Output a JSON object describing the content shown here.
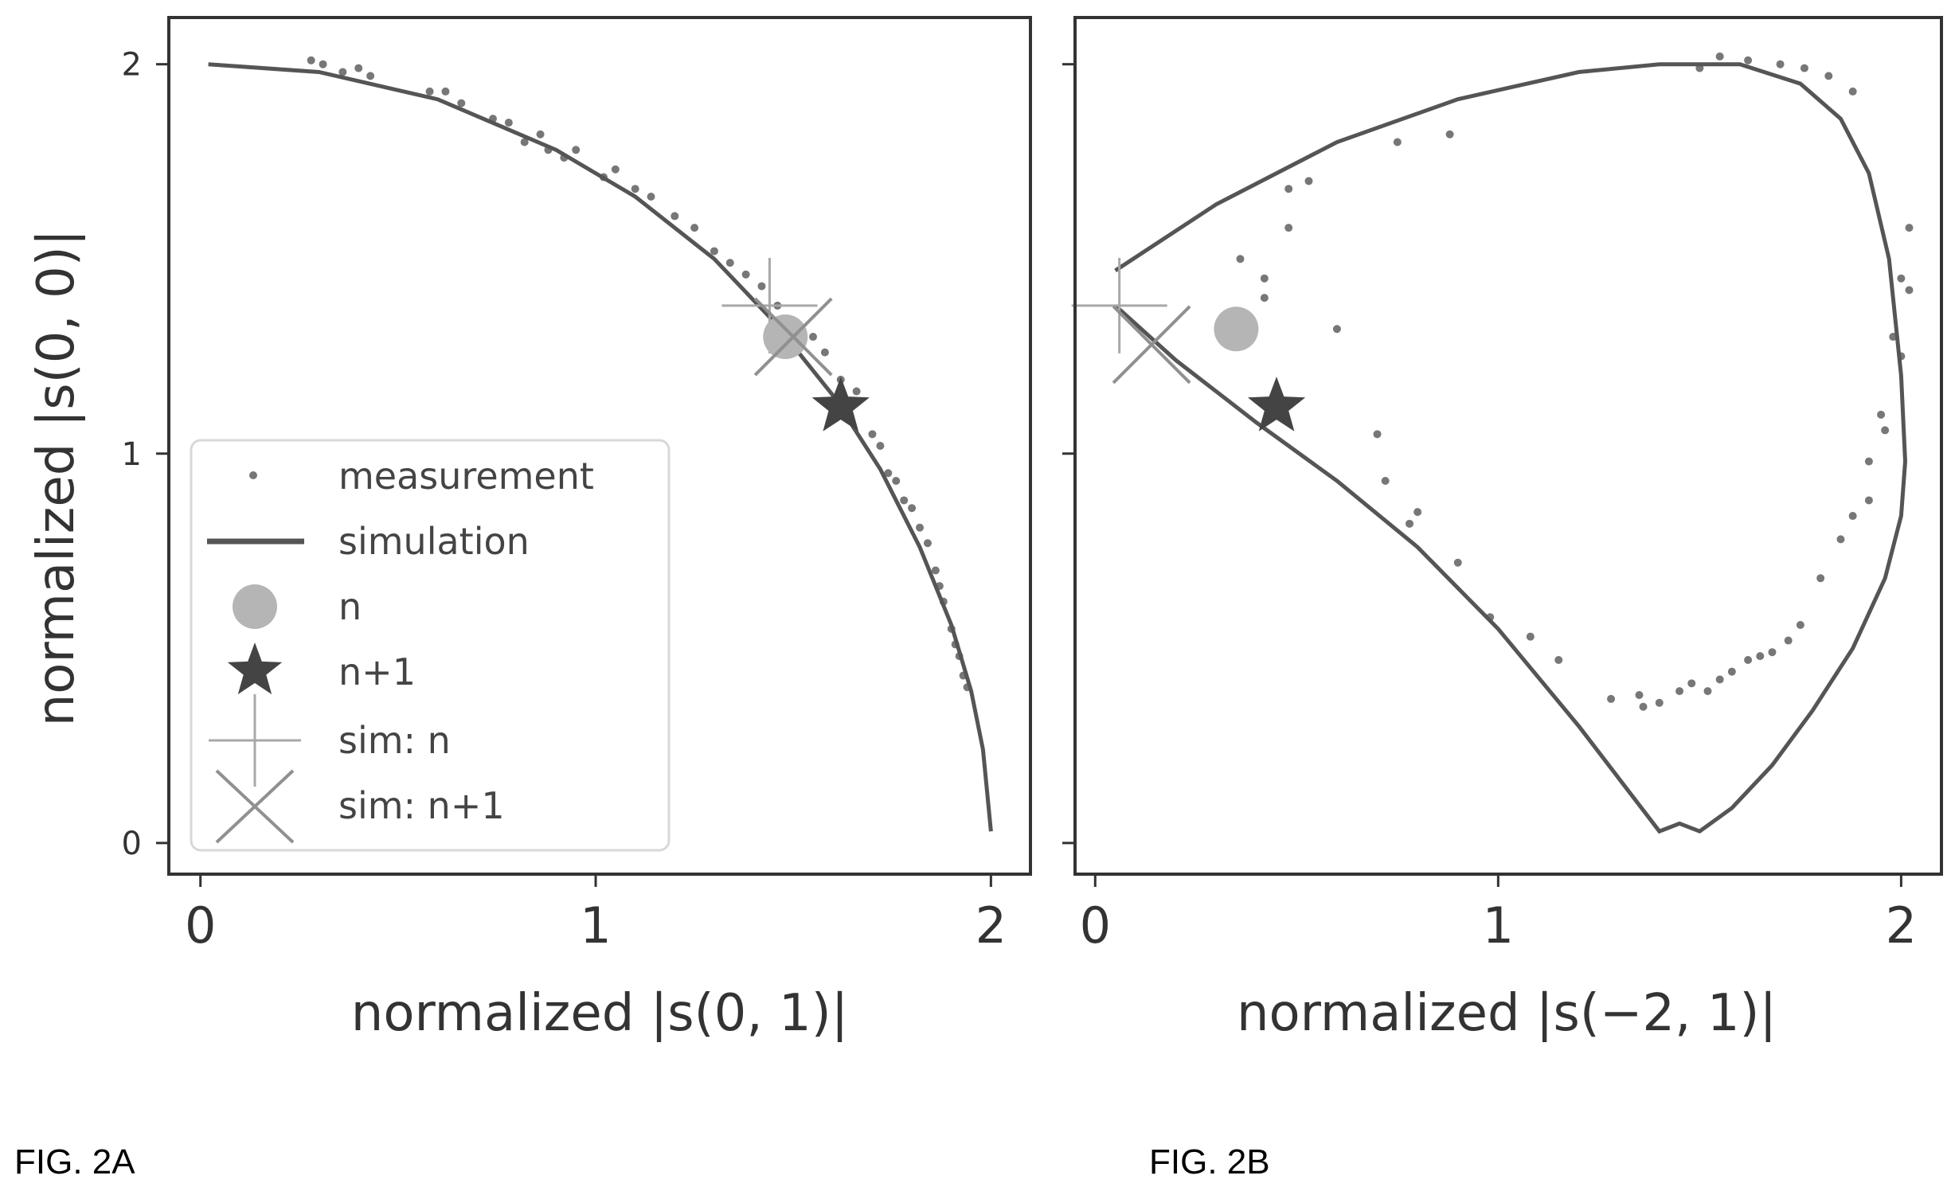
{
  "figure_labels": {
    "left": "FIG. 2A",
    "right": "FIG. 2B"
  },
  "legend": {
    "measurement": "measurement",
    "simulation": "simulation",
    "n": "n",
    "n1": "n+1",
    "sim_n": "sim: n",
    "sim_n1": "sim: n+1"
  },
  "colors": {
    "measurement": "#777777",
    "simulation": "#555555",
    "n_marker": "#b5b5b5",
    "n1_marker": "#444444",
    "sim_n_marker": "#a8a8a8",
    "sim_n1_marker": "#909090",
    "axes": "#333333"
  },
  "chart_data": [
    {
      "type": "scatter",
      "panel": "FIG. 2A",
      "xlabel": "normalized |s(0, 1)|",
      "ylabel": "normalized |s(0, 0)|",
      "xlim": [
        -0.08,
        2.1
      ],
      "ylim": [
        -0.08,
        2.12
      ],
      "xticks": [
        0,
        1,
        2
      ],
      "yticks": [
        0,
        1,
        2
      ],
      "legend_position": "lower-left",
      "grid": false,
      "simulation": {
        "x": [
          0.02,
          0.3,
          0.6,
          0.9,
          1.1,
          1.3,
          1.45,
          1.6,
          1.72,
          1.82,
          1.9,
          1.95,
          1.98,
          2.0
        ],
        "y": [
          2.0,
          1.98,
          1.91,
          1.78,
          1.66,
          1.5,
          1.34,
          1.15,
          0.96,
          0.76,
          0.56,
          0.39,
          0.24,
          0.03
        ]
      },
      "measurement": {
        "x": [
          0.28,
          0.31,
          0.36,
          0.4,
          0.43,
          0.58,
          0.62,
          0.66,
          0.74,
          0.78,
          0.82,
          0.86,
          0.88,
          0.92,
          0.95,
          1.02,
          1.05,
          1.1,
          1.14,
          1.2,
          1.25,
          1.3,
          1.34,
          1.38,
          1.42,
          1.46,
          1.5,
          1.55,
          1.58,
          1.62,
          1.66,
          1.7,
          1.72,
          1.74,
          1.76,
          1.78,
          1.8,
          1.82,
          1.84,
          1.86,
          1.87,
          1.88,
          1.9,
          1.91,
          1.92,
          1.93,
          1.94
        ],
        "y": [
          2.01,
          2.0,
          1.98,
          1.99,
          1.97,
          1.93,
          1.93,
          1.9,
          1.86,
          1.85,
          1.8,
          1.82,
          1.78,
          1.76,
          1.78,
          1.71,
          1.73,
          1.68,
          1.66,
          1.61,
          1.58,
          1.52,
          1.49,
          1.46,
          1.43,
          1.38,
          1.34,
          1.3,
          1.26,
          1.19,
          1.16,
          1.05,
          1.02,
          0.95,
          0.93,
          0.88,
          0.86,
          0.81,
          0.77,
          0.7,
          0.66,
          0.62,
          0.55,
          0.51,
          0.48,
          0.43,
          0.4
        ]
      },
      "n": {
        "x": 1.48,
        "y": 1.3
      },
      "n1": {
        "x": 1.62,
        "y": 1.12
      },
      "sim_n": {
        "x": 1.44,
        "y": 1.38
      },
      "sim_n1": {
        "x": 1.5,
        "y": 1.3
      }
    },
    {
      "type": "scatter",
      "panel": "FIG. 2B",
      "xlabel": "normalized |s(−2, 1)|",
      "ylabel": "",
      "xlim": [
        -0.05,
        2.1
      ],
      "ylim": [
        -0.08,
        2.12
      ],
      "xticks": [
        0,
        1,
        2
      ],
      "yticks": [
        0,
        1,
        2
      ],
      "legend_position": "none",
      "grid": false,
      "simulation": {
        "x": [
          0.05,
          0.3,
          0.6,
          0.9,
          1.2,
          1.4,
          1.6,
          1.75,
          1.85,
          1.92,
          1.97,
          2.0,
          2.01,
          2.0,
          1.96,
          1.88,
          1.78,
          1.68,
          1.58,
          1.5,
          1.45,
          1.4,
          1.2,
          1.0,
          0.8,
          0.6,
          0.4,
          0.2,
          0.05
        ],
        "y": [
          1.47,
          1.64,
          1.8,
          1.91,
          1.98,
          2.0,
          2.0,
          1.95,
          1.86,
          1.72,
          1.5,
          1.2,
          0.98,
          0.84,
          0.68,
          0.5,
          0.34,
          0.2,
          0.09,
          0.03,
          0.05,
          0.03,
          0.3,
          0.55,
          0.76,
          0.93,
          1.08,
          1.24,
          1.38
        ]
      },
      "measurement": {
        "x": [
          0.38,
          0.42,
          0.48,
          0.53,
          0.6,
          0.7,
          0.72,
          0.78,
          0.8,
          0.9,
          0.98,
          1.08,
          1.15,
          1.28,
          1.35,
          1.36,
          1.4,
          1.45,
          1.48,
          1.52,
          1.55,
          1.58,
          1.62,
          1.65,
          1.68,
          1.72,
          1.75,
          1.8,
          1.85,
          1.88,
          1.92,
          1.95,
          1.98,
          2.0,
          2.02,
          2.02,
          2.0,
          1.96,
          1.92,
          1.88,
          1.82,
          1.76,
          1.7,
          1.62,
          1.55,
          1.5,
          0.75,
          0.88,
          0.48,
          0.36,
          0.42
        ],
        "y": [
          1.33,
          1.45,
          1.68,
          1.7,
          1.32,
          1.05,
          0.93,
          0.82,
          0.85,
          0.72,
          0.58,
          0.53,
          0.47,
          0.37,
          0.38,
          0.35,
          0.36,
          0.39,
          0.41,
          0.39,
          0.42,
          0.44,
          0.47,
          0.48,
          0.49,
          0.52,
          0.56,
          0.68,
          0.78,
          0.84,
          0.98,
          1.1,
          1.3,
          1.45,
          1.58,
          1.42,
          1.25,
          1.06,
          0.88,
          1.93,
          1.97,
          1.99,
          2.0,
          2.01,
          2.02,
          1.99,
          1.8,
          1.82,
          1.58,
          1.5,
          1.4
        ]
      },
      "n": {
        "x": 0.35,
        "y": 1.32
      },
      "n1": {
        "x": 0.45,
        "y": 1.12
      },
      "sim_n": {
        "x": 0.06,
        "y": 1.38
      },
      "sim_n1": {
        "x": 0.14,
        "y": 1.28
      }
    }
  ]
}
